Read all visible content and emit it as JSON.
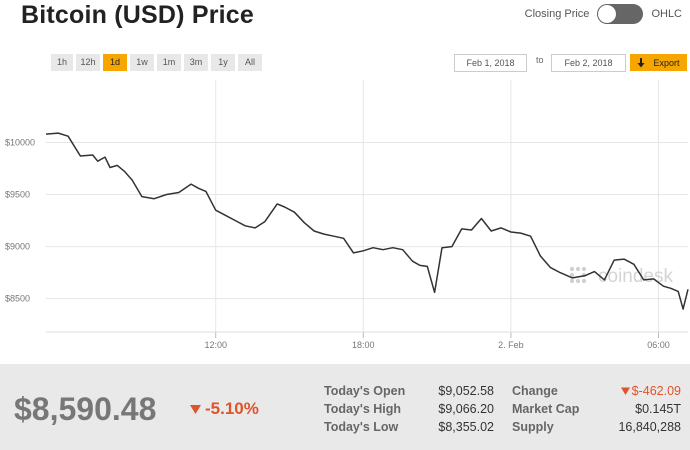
{
  "title": "Bitcoin (USD) Price",
  "toggle": {
    "left_label": "Closing Price",
    "right_label": "OHLC"
  },
  "ranges": [
    {
      "label": "1h",
      "active": false
    },
    {
      "label": "12h",
      "active": false
    },
    {
      "label": "1d",
      "active": true
    },
    {
      "label": "1w",
      "active": false
    },
    {
      "label": "1m",
      "active": false
    },
    {
      "label": "3m",
      "active": false
    },
    {
      "label": "1y",
      "active": false
    },
    {
      "label": "All",
      "active": false
    }
  ],
  "date_from": "Feb 1, 2018",
  "date_sep": "to",
  "date_to": "Feb 2, 2018",
  "export_label": "Export",
  "watermark": "coindesk",
  "colors": {
    "accent": "#f7a600",
    "negative": "#e0542b",
    "line": "#333333"
  },
  "chart_data": {
    "type": "line",
    "y_ticks": [
      10000,
      9500,
      9000,
      8500
    ],
    "y_tick_labels": [
      "$10000",
      "$9500",
      "$9000",
      "$8500"
    ],
    "x_ticks": [
      {
        "label": "12:00",
        "hour": 12
      },
      {
        "label": "18:00",
        "hour": 18
      },
      {
        "label": "2. Feb",
        "hour": 24
      },
      {
        "label": "06:00",
        "hour": 30
      }
    ],
    "hour_range": [
      5.1,
      31.2
    ],
    "y_range": [
      8180,
      10600
    ],
    "grid": true,
    "series": [
      {
        "hours": [
          5.1,
          5.6,
          6.0,
          6.5,
          7.0,
          7.2,
          7.5,
          7.7,
          8.0,
          8.3,
          8.6,
          9.0,
          9.5,
          10.0,
          10.5,
          11.0,
          11.3,
          11.6,
          12.0,
          12.4,
          12.8,
          13.2,
          13.6,
          14.0,
          14.5,
          14.8,
          15.2,
          15.6,
          16.0,
          16.4,
          16.8,
          17.2,
          17.6,
          18.0,
          18.4,
          18.8,
          19.2,
          19.6,
          20.0,
          20.3,
          20.6,
          20.9,
          21.2,
          21.6,
          22.0,
          22.4,
          22.8,
          23.2,
          23.6,
          24.0,
          24.4,
          24.8,
          25.2,
          25.6,
          26.0,
          26.5,
          27.0,
          27.4,
          27.8,
          28.2,
          28.6,
          29.0,
          29.4,
          29.8,
          30.2,
          30.5,
          30.8,
          31.0,
          31.2
        ],
        "values": [
          10080,
          10090,
          10060,
          9870,
          9880,
          9820,
          9860,
          9760,
          9780,
          9720,
          9640,
          9480,
          9460,
          9500,
          9520,
          9600,
          9560,
          9530,
          9350,
          9300,
          9250,
          9200,
          9180,
          9240,
          9410,
          9380,
          9330,
          9230,
          9150,
          9120,
          9100,
          9080,
          8940,
          8960,
          8990,
          8970,
          8990,
          8970,
          8860,
          8820,
          8810,
          8560,
          8990,
          9000,
          9170,
          9160,
          9270,
          9150,
          9180,
          9140,
          9130,
          9100,
          8910,
          8800,
          8750,
          8700,
          8720,
          8760,
          8680,
          8870,
          8880,
          8830,
          8680,
          8690,
          8620,
          8600,
          8570,
          8400,
          8590
        ]
      }
    ]
  },
  "summary": {
    "price": "$8,590.48",
    "change_pct": "-5.10%",
    "stats": [
      {
        "label": "Today's Open",
        "value": "$9,052.58"
      },
      {
        "label": "Today's High",
        "value": "$9,066.20"
      },
      {
        "label": "Today's Low",
        "value": "$8,355.02"
      }
    ],
    "stats2": [
      {
        "label": "Change",
        "value": "$-462.09"
      },
      {
        "label": "Market Cap",
        "value": "$0.145T"
      },
      {
        "label": "Supply",
        "value": "16,840,288"
      }
    ]
  }
}
